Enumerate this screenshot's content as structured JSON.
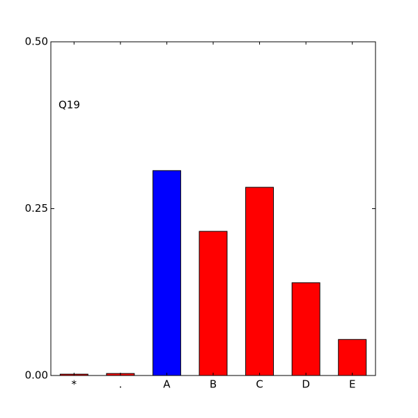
{
  "chart_data": {
    "type": "bar",
    "annotation": "Q19",
    "categories": [
      "*",
      ".",
      "A",
      "B",
      "C",
      "D",
      "E"
    ],
    "values": [
      0.002,
      0.003,
      0.307,
      0.216,
      0.282,
      0.139,
      0.054
    ],
    "colors": [
      "#ff0000",
      "#ff0000",
      "#0000ff",
      "#ff0000",
      "#ff0000",
      "#ff0000",
      "#ff0000"
    ],
    "ylim": [
      0,
      0.5
    ],
    "yticks": [
      {
        "value": 0,
        "label": "0.00"
      },
      {
        "value": 0.25,
        "label": "0.25"
      },
      {
        "value": 0.5,
        "label": "0.50"
      }
    ]
  }
}
